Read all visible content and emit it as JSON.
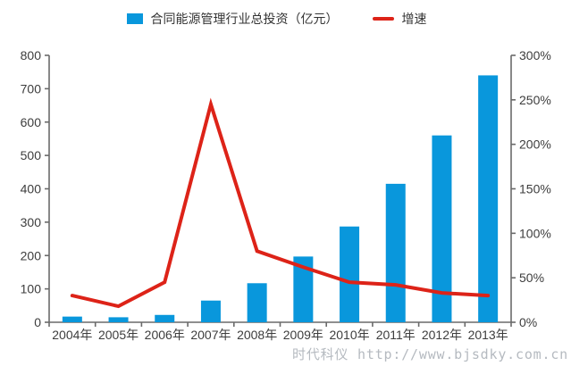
{
  "legend": {
    "items": [
      {
        "label": "合同能源管理行业总投资（亿元）",
        "swatch": "bar",
        "color": "#0997DC"
      },
      {
        "label": "增速",
        "swatch": "line",
        "color": "#DD2318"
      }
    ]
  },
  "chart_data": {
    "type": "combo",
    "categories": [
      "2004年",
      "2005年",
      "2006年",
      "2007年",
      "2008年",
      "2009年",
      "2010年",
      "2011年",
      "2012年",
      "2013年"
    ],
    "series": [
      {
        "name": "合同能源管理行业总投资（亿元）",
        "type": "bar",
        "axis": "left",
        "color": "#0997DC",
        "values": [
          17,
          15,
          22,
          65,
          117,
          197,
          287,
          415,
          560,
          740
        ]
      },
      {
        "name": "增速",
        "type": "line",
        "axis": "right",
        "color": "#DD2318",
        "unit": "%",
        "values": [
          30,
          18,
          45,
          245,
          80,
          62,
          45,
          42,
          33,
          30
        ]
      }
    ],
    "left_axis": {
      "min": 0,
      "max": 800,
      "step": 100,
      "ticks": [
        "0",
        "100",
        "200",
        "300",
        "400",
        "500",
        "600",
        "700",
        "800"
      ]
    },
    "right_axis": {
      "min": 0,
      "max": 300,
      "step": 50,
      "ticks": [
        "0%",
        "50%",
        "100%",
        "150%",
        "200%",
        "250%",
        "300%"
      ]
    },
    "grid": false,
    "legend_position": "top",
    "title": ""
  },
  "watermark": "时代科仪 http://www.bjsdky.com.cn",
  "colors": {
    "axis": "#6a6a6a",
    "tick_label": "#3d3d3d",
    "watermark": "#b5bac0"
  }
}
